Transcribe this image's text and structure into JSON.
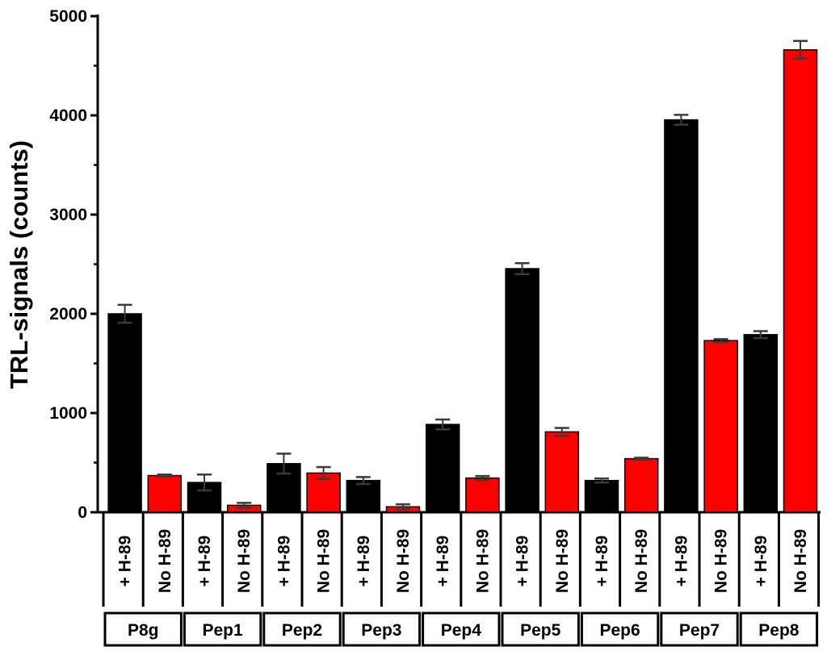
{
  "chart_data": {
    "type": "bar",
    "ylabel": "TRL-signals (counts)",
    "ylim": [
      0,
      5000
    ],
    "yticks": [
      0,
      1000,
      2000,
      3000,
      4000,
      5000
    ],
    "groups": [
      "P8g",
      "Pep1",
      "Pep2",
      "Pep3",
      "Pep4",
      "Pep5",
      "Pep6",
      "Pep7",
      "Pep8"
    ],
    "series": [
      {
        "name": "+ H-89",
        "color": "#000000",
        "values": [
          2000,
          300,
          490,
          320,
          885,
          2455,
          320,
          3955,
          1790
        ],
        "errors": [
          90,
          80,
          100,
          35,
          50,
          55,
          20,
          50,
          35
        ]
      },
      {
        "name": "No H-89",
        "color": "#ff0000",
        "values": [
          370,
          70,
          395,
          55,
          345,
          810,
          540,
          1730,
          4660
        ],
        "errors": [
          10,
          25,
          60,
          25,
          20,
          40,
          10,
          15,
          90
        ]
      }
    ]
  }
}
